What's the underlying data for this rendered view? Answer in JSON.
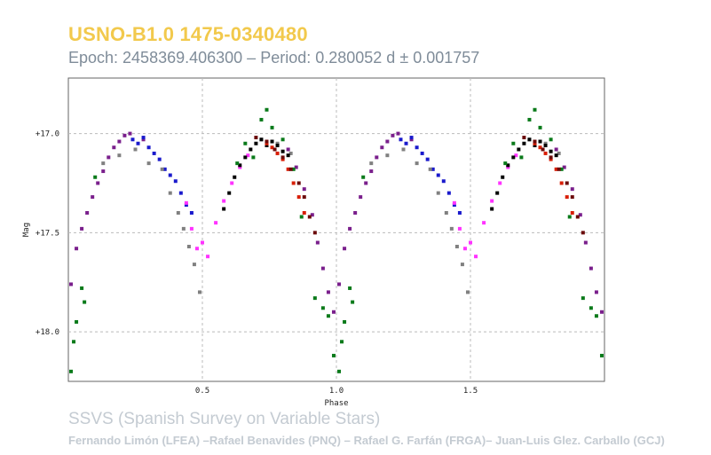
{
  "header": {
    "title": "USNO-B1.0 1475-0340480",
    "subtitle": "Epoch: 2458369.406300 – Period: 0.280052 d ± 0.001757"
  },
  "footer": {
    "survey": "SSVS (Spanish Survey on Variable Stars)",
    "credits": "Fernando Limón (LFEA) –Rafael Benavides (PNQ) – Rafael G. Farfán (FRGA)– Juan-Luis Glez. Carballo (GCJ)"
  },
  "colors": {
    "title": "#f2c94c",
    "subtitle": "#7f8c99",
    "footer": "#c4cbd2",
    "series": [
      "#7a1f8c",
      "#1a1acc",
      "#808080",
      "#ff33ff",
      "#000000",
      "#0a7a1a",
      "#d81e05",
      "#6b0a0a"
    ]
  },
  "chart_data": {
    "type": "scatter",
    "title": "",
    "xlabel": "Phase",
    "ylabel": "Mag",
    "xlim": [
      0.0,
      2.0
    ],
    "ylim": [
      18.25,
      16.72
    ],
    "y_inverted": true,
    "grid": true,
    "x_ticks": [
      0.5,
      1.0,
      1.5
    ],
    "x_tick_labels": [
      "0.5",
      "1.0",
      "1.5"
    ],
    "y_ticks": [
      17.0,
      17.5,
      18.0
    ],
    "y_tick_labels": [
      "+17.0",
      "+17.5",
      "+18.0"
    ],
    "phase_repeated": true,
    "series": [
      {
        "color": "#7a1f8c",
        "x": [
          0.01,
          0.03,
          0.05,
          0.07,
          0.09,
          0.11,
          0.13,
          0.15,
          0.17,
          0.19,
          0.21,
          0.23,
          0.28,
          0.82,
          0.85,
          0.88,
          0.91,
          0.93,
          0.95,
          0.97,
          0.99
        ],
        "y": [
          17.76,
          17.58,
          17.48,
          17.4,
          17.32,
          17.25,
          17.19,
          17.12,
          17.07,
          17.04,
          17.01,
          17.0,
          17.03,
          17.08,
          17.17,
          17.28,
          17.41,
          17.55,
          17.68,
          17.8,
          17.9
        ]
      },
      {
        "color": "#1a1acc",
        "x": [
          0.24,
          0.26,
          0.28,
          0.3,
          0.32,
          0.34,
          0.36,
          0.38,
          0.4,
          0.42,
          0.44,
          0.46
        ],
        "y": [
          17.03,
          17.05,
          17.02,
          17.07,
          17.1,
          17.13,
          17.18,
          17.21,
          17.24,
          17.3,
          17.36,
          17.4
        ]
      },
      {
        "color": "#808080",
        "x": [
          0.13,
          0.19,
          0.25,
          0.3,
          0.35,
          0.38,
          0.41,
          0.43,
          0.45,
          0.47,
          0.49,
          0.72,
          0.78,
          0.83
        ],
        "y": [
          17.15,
          17.11,
          17.08,
          17.15,
          17.18,
          17.3,
          17.4,
          17.48,
          17.57,
          17.66,
          17.8,
          17.03,
          17.05,
          17.1
        ]
      },
      {
        "color": "#ff33ff",
        "x": [
          0.44,
          0.46,
          0.48,
          0.5,
          0.52,
          0.55,
          0.58,
          0.61,
          0.64,
          0.67
        ],
        "y": [
          17.35,
          17.48,
          17.58,
          17.55,
          17.62,
          17.45,
          17.34,
          17.25,
          17.17,
          17.11
        ]
      },
      {
        "color": "#000000",
        "x": [
          0.58,
          0.6,
          0.62,
          0.64,
          0.66,
          0.68,
          0.7,
          0.72,
          0.74,
          0.76,
          0.78,
          0.8,
          0.82
        ],
        "y": [
          17.38,
          17.3,
          17.22,
          17.16,
          17.12,
          17.08,
          17.05,
          17.03,
          17.06,
          17.04,
          17.06,
          17.09,
          17.11
        ]
      },
      {
        "color": "#0a7a1a",
        "x": [
          0.01,
          0.02,
          0.03,
          0.05,
          0.06,
          0.1,
          0.63,
          0.66,
          0.69,
          0.72,
          0.74,
          0.76,
          0.8,
          0.84,
          0.87,
          0.92,
          0.95,
          0.97,
          0.99
        ],
        "y": [
          18.2,
          18.05,
          17.95,
          17.78,
          17.85,
          17.22,
          17.15,
          17.05,
          17.12,
          16.93,
          16.88,
          16.97,
          17.03,
          17.18,
          17.42,
          17.83,
          17.88,
          17.92,
          18.12
        ]
      },
      {
        "color": "#d81e05",
        "x": [
          0.74,
          0.76,
          0.78,
          0.8,
          0.82,
          0.84,
          0.86,
          0.88
        ],
        "y": [
          17.05,
          17.07,
          17.1,
          17.13,
          17.18,
          17.25,
          17.32,
          17.4
        ]
      },
      {
        "color": "#6b0a0a",
        "x": [
          0.7,
          0.74,
          0.77,
          0.8,
          0.83,
          0.86,
          0.88,
          0.9,
          0.92
        ],
        "y": [
          17.02,
          17.04,
          17.08,
          17.12,
          17.18,
          17.25,
          17.32,
          17.42,
          17.5
        ]
      }
    ]
  }
}
